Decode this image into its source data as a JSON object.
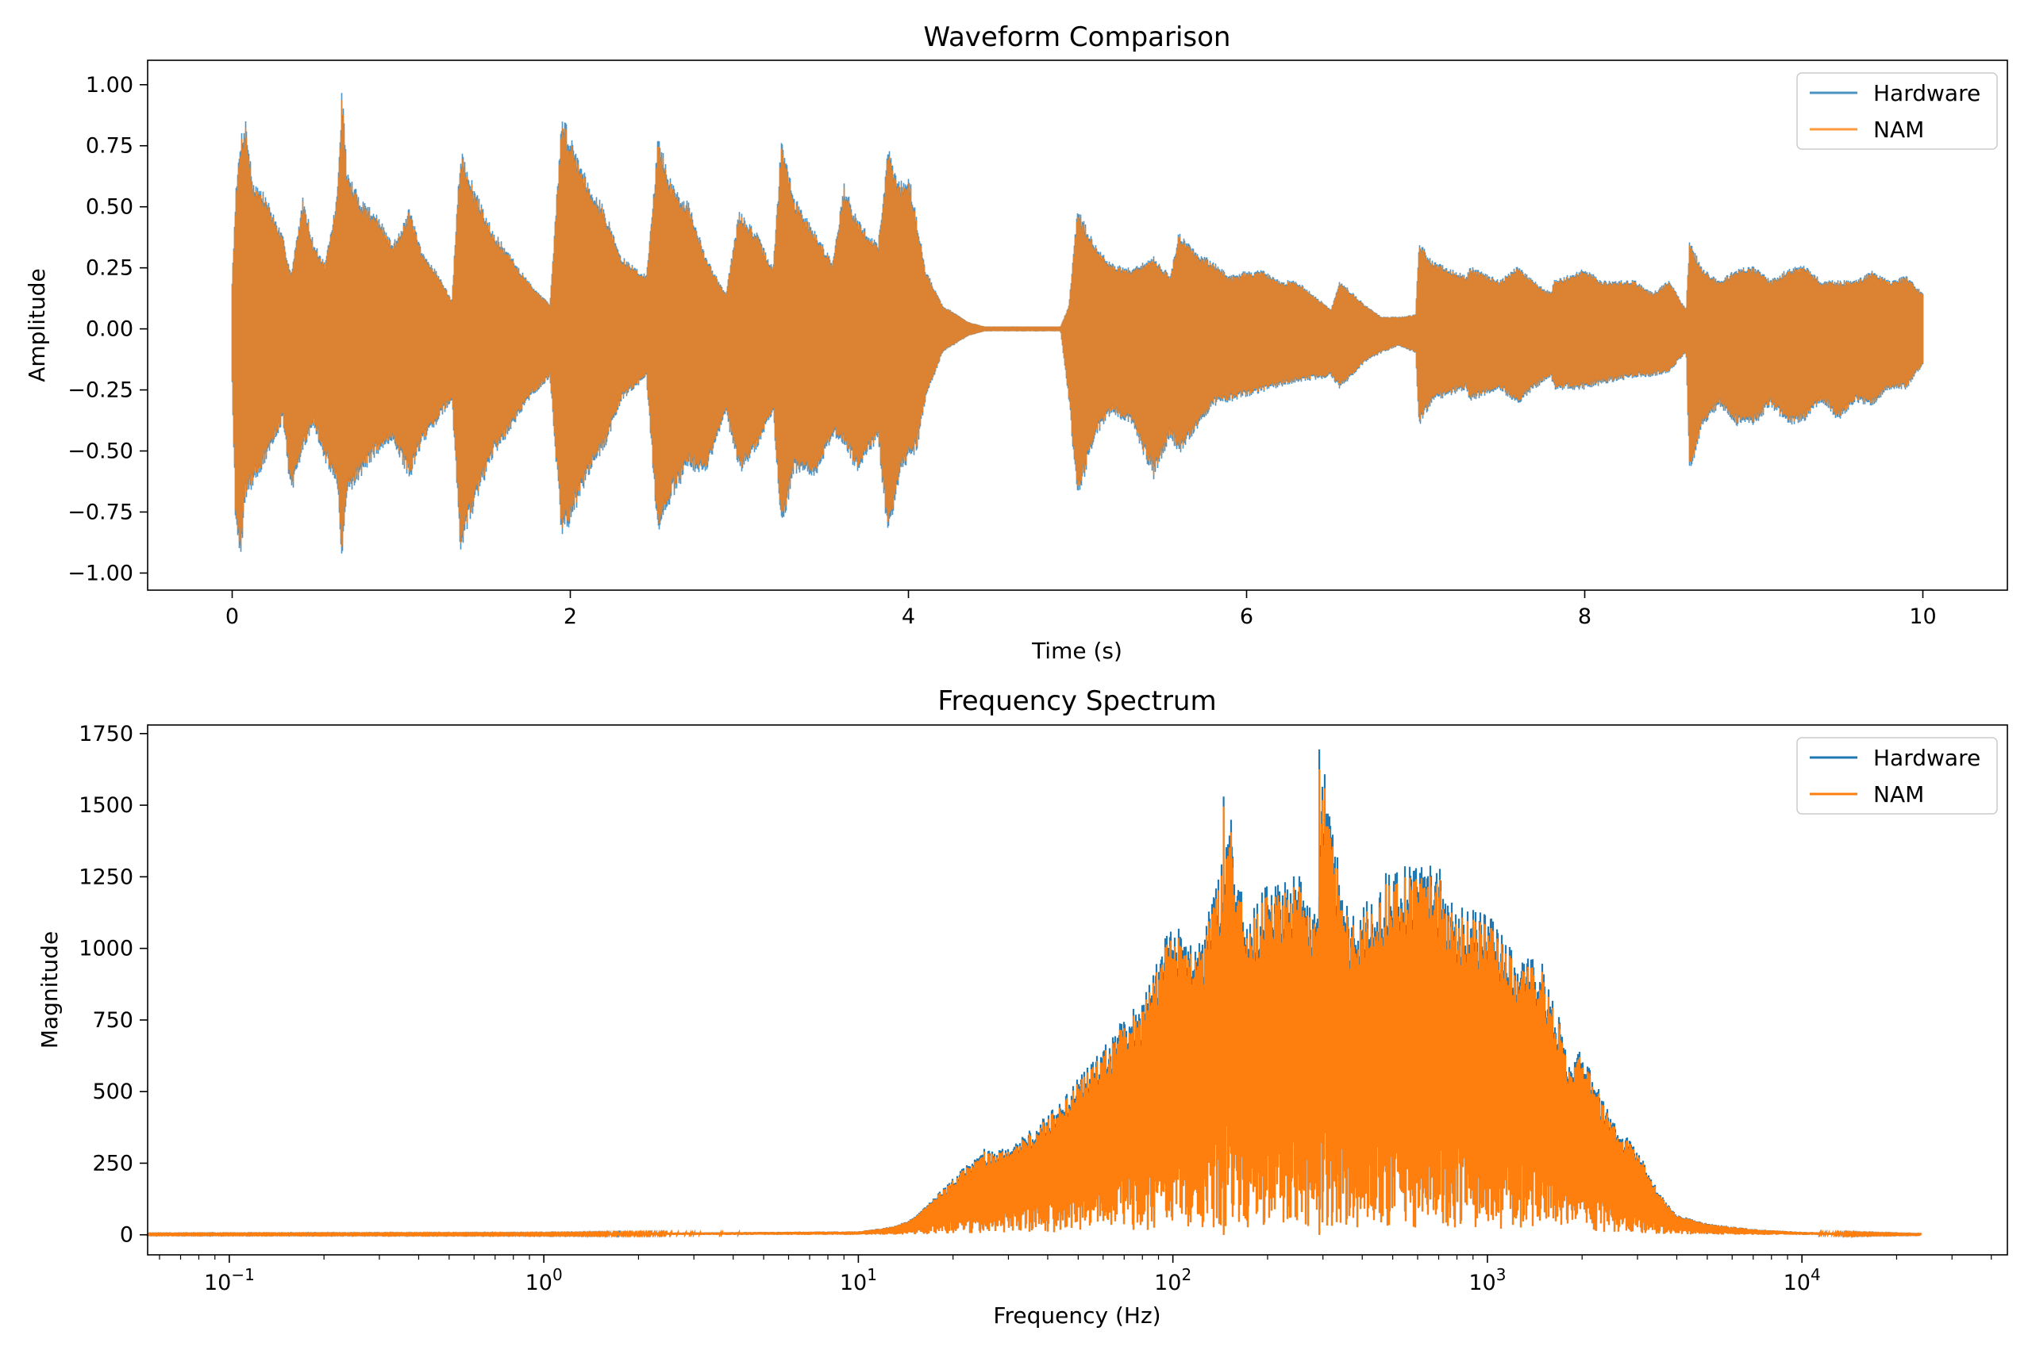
{
  "chart_data": [
    {
      "type": "line",
      "title": "Waveform Comparison",
      "xlabel": "Time (s)",
      "ylabel": "Amplitude",
      "xlim": [
        -0.5,
        10.5
      ],
      "ylim": [
        -1.07,
        1.1
      ],
      "xticks": [
        0,
        2,
        4,
        6,
        8,
        10
      ],
      "xtick_labels": [
        "0",
        "2",
        "4",
        "6",
        "8",
        "10"
      ],
      "yticks": [
        1.0,
        0.75,
        0.5,
        0.25,
        0.0,
        -0.25,
        -0.5,
        -0.75,
        -1.0
      ],
      "ytick_labels": [
        "1.00",
        "0.75",
        "0.50",
        "0.25",
        "0.00",
        "−0.25",
        "−0.50",
        "−0.75",
        "−1.00"
      ],
      "legend": "top-right",
      "grid": false,
      "series": [
        {
          "name": "Hardware",
          "color": "#1f77b4",
          "envelope_time": [
            0.0,
            0.02,
            0.05,
            0.08,
            0.12,
            0.2,
            0.3,
            0.35,
            0.42,
            0.48,
            0.55,
            0.62,
            0.65,
            0.68,
            0.75,
            0.85,
            0.95,
            1.05,
            1.12,
            1.2,
            1.3,
            1.35,
            1.45,
            1.55,
            1.65,
            1.75,
            1.88,
            1.95,
            2.0,
            2.1,
            2.2,
            2.3,
            2.45,
            2.52,
            2.6,
            2.7,
            2.8,
            2.92,
            3.0,
            3.1,
            3.2,
            3.25,
            3.32,
            3.45,
            3.55,
            3.62,
            3.7,
            3.82,
            3.88,
            3.95,
            4.0,
            4.05,
            4.1,
            4.2,
            4.35,
            4.45,
            4.9,
            4.95,
            5.0,
            5.1,
            5.2,
            5.32,
            5.45,
            5.55,
            5.6,
            5.7,
            5.8,
            5.9,
            6.0,
            6.1,
            6.2,
            6.3,
            6.5,
            6.55,
            6.7,
            6.8,
            6.9,
            7.0,
            7.02,
            7.1,
            7.3,
            7.32,
            7.5,
            7.6,
            7.7,
            7.8,
            7.82,
            8.0,
            8.1,
            8.3,
            8.4,
            8.5,
            8.6,
            8.62,
            8.7,
            8.8,
            8.9,
            9.0,
            9.1,
            9.2,
            9.3,
            9.4,
            9.5,
            9.6,
            9.7,
            9.8,
            9.9,
            10.0
          ],
          "envelope_max": [
            0.2,
            0.55,
            0.8,
            0.87,
            0.62,
            0.55,
            0.38,
            0.23,
            0.55,
            0.36,
            0.27,
            0.55,
            1.0,
            0.65,
            0.55,
            0.48,
            0.35,
            0.5,
            0.32,
            0.25,
            0.12,
            0.74,
            0.55,
            0.4,
            0.3,
            0.2,
            0.1,
            0.89,
            0.8,
            0.62,
            0.5,
            0.3,
            0.22,
            0.8,
            0.6,
            0.52,
            0.3,
            0.15,
            0.49,
            0.4,
            0.25,
            0.8,
            0.55,
            0.4,
            0.28,
            0.6,
            0.45,
            0.35,
            0.75,
            0.6,
            0.65,
            0.45,
            0.25,
            0.1,
            0.03,
            0.01,
            0.01,
            0.1,
            0.5,
            0.35,
            0.27,
            0.25,
            0.3,
            0.22,
            0.4,
            0.32,
            0.28,
            0.22,
            0.24,
            0.24,
            0.2,
            0.2,
            0.08,
            0.2,
            0.1,
            0.05,
            0.05,
            0.06,
            0.36,
            0.28,
            0.22,
            0.26,
            0.2,
            0.26,
            0.2,
            0.15,
            0.2,
            0.25,
            0.2,
            0.2,
            0.15,
            0.2,
            0.08,
            0.36,
            0.25,
            0.2,
            0.25,
            0.26,
            0.2,
            0.25,
            0.26,
            0.2,
            0.2,
            0.2,
            0.24,
            0.2,
            0.22,
            0.15
          ],
          "envelope_min": [
            -0.22,
            -0.8,
            -0.95,
            -0.7,
            -0.65,
            -0.55,
            -0.38,
            -0.7,
            -0.5,
            -0.4,
            -0.55,
            -0.65,
            -0.97,
            -0.7,
            -0.62,
            -0.52,
            -0.48,
            -0.62,
            -0.48,
            -0.4,
            -0.3,
            -0.92,
            -0.7,
            -0.52,
            -0.42,
            -0.3,
            -0.2,
            -0.88,
            -0.8,
            -0.62,
            -0.5,
            -0.3,
            -0.2,
            -0.88,
            -0.7,
            -0.58,
            -0.6,
            -0.35,
            -0.6,
            -0.5,
            -0.35,
            -0.86,
            -0.6,
            -0.62,
            -0.45,
            -0.48,
            -0.6,
            -0.45,
            -0.88,
            -0.6,
            -0.55,
            -0.5,
            -0.3,
            -0.1,
            -0.03,
            -0.01,
            -0.01,
            -0.3,
            -0.72,
            -0.45,
            -0.35,
            -0.4,
            -0.62,
            -0.45,
            -0.52,
            -0.42,
            -0.32,
            -0.3,
            -0.28,
            -0.26,
            -0.24,
            -0.22,
            -0.2,
            -0.25,
            -0.14,
            -0.1,
            -0.07,
            -0.1,
            -0.4,
            -0.3,
            -0.25,
            -0.3,
            -0.25,
            -0.32,
            -0.25,
            -0.2,
            -0.25,
            -0.25,
            -0.23,
            -0.2,
            -0.2,
            -0.18,
            -0.1,
            -0.6,
            -0.4,
            -0.32,
            -0.4,
            -0.4,
            -0.32,
            -0.4,
            -0.38,
            -0.3,
            -0.38,
            -0.3,
            -0.32,
            -0.25,
            -0.25,
            -0.15
          ]
        },
        {
          "name": "NAM",
          "color": "#ff7f0e",
          "envelope_scale": 0.97
        }
      ]
    },
    {
      "type": "line",
      "title": "Frequency Spectrum",
      "xlabel": "Frequency (Hz)",
      "ylabel": "Magnitude",
      "xscale": "log",
      "xlim": [
        0.055,
        45000
      ],
      "ylim": [
        -70,
        1780
      ],
      "xticks": [
        0.1,
        1,
        10,
        100,
        1000,
        10000
      ],
      "xtick_labels": [
        {
          "base": "10",
          "exp": "−1"
        },
        {
          "base": "10",
          "exp": "0"
        },
        {
          "base": "10",
          "exp": "1"
        },
        {
          "base": "10",
          "exp": "2"
        },
        {
          "base": "10",
          "exp": "3"
        },
        {
          "base": "10",
          "exp": "4"
        }
      ],
      "yticks": [
        1750,
        1500,
        1250,
        1000,
        750,
        500,
        250,
        0
      ],
      "ytick_labels": [
        "1750",
        "1500",
        "1250",
        "1000",
        "750",
        "500",
        "250",
        "0"
      ],
      "legend": "top-right",
      "grid": false,
      "series": [
        {
          "name": "Hardware",
          "color": "#1f77b4",
          "envelope_freq": [
            0.055,
            1,
            10,
            13,
            15,
            17,
            20,
            25,
            30,
            40,
            50,
            60,
            70,
            80,
            100,
            120,
            140,
            150,
            170,
            200,
            250,
            290,
            300,
            350,
            400,
            500,
            600,
            700,
            800,
            1000,
            1200,
            1500,
            1800,
            2000,
            2500,
            3000,
            3500,
            4000,
            5000,
            7000,
            10000,
            15000,
            24000
          ],
          "envelope_max": [
            3,
            4,
            12,
            30,
            60,
            120,
            200,
            300,
            300,
            420,
            550,
            650,
            770,
            820,
            1130,
            1000,
            1250,
            1530,
            1100,
            1230,
            1280,
            1100,
            1700,
            1150,
            1150,
            1300,
            1280,
            1300,
            1150,
            1130,
            1000,
            950,
            660,
            640,
            400,
            300,
            150,
            70,
            40,
            20,
            10,
            5,
            2
          ],
          "peaks": [
            {
              "freq": 145,
              "value": 1530
            },
            {
              "freq": 292,
              "value": 1695
            }
          ]
        },
        {
          "name": "NAM",
          "color": "#ff7f0e",
          "peaks": [
            {
              "freq": 145,
              "value": 1495
            },
            {
              "freq": 292,
              "value": 1625
            }
          ]
        }
      ]
    }
  ]
}
